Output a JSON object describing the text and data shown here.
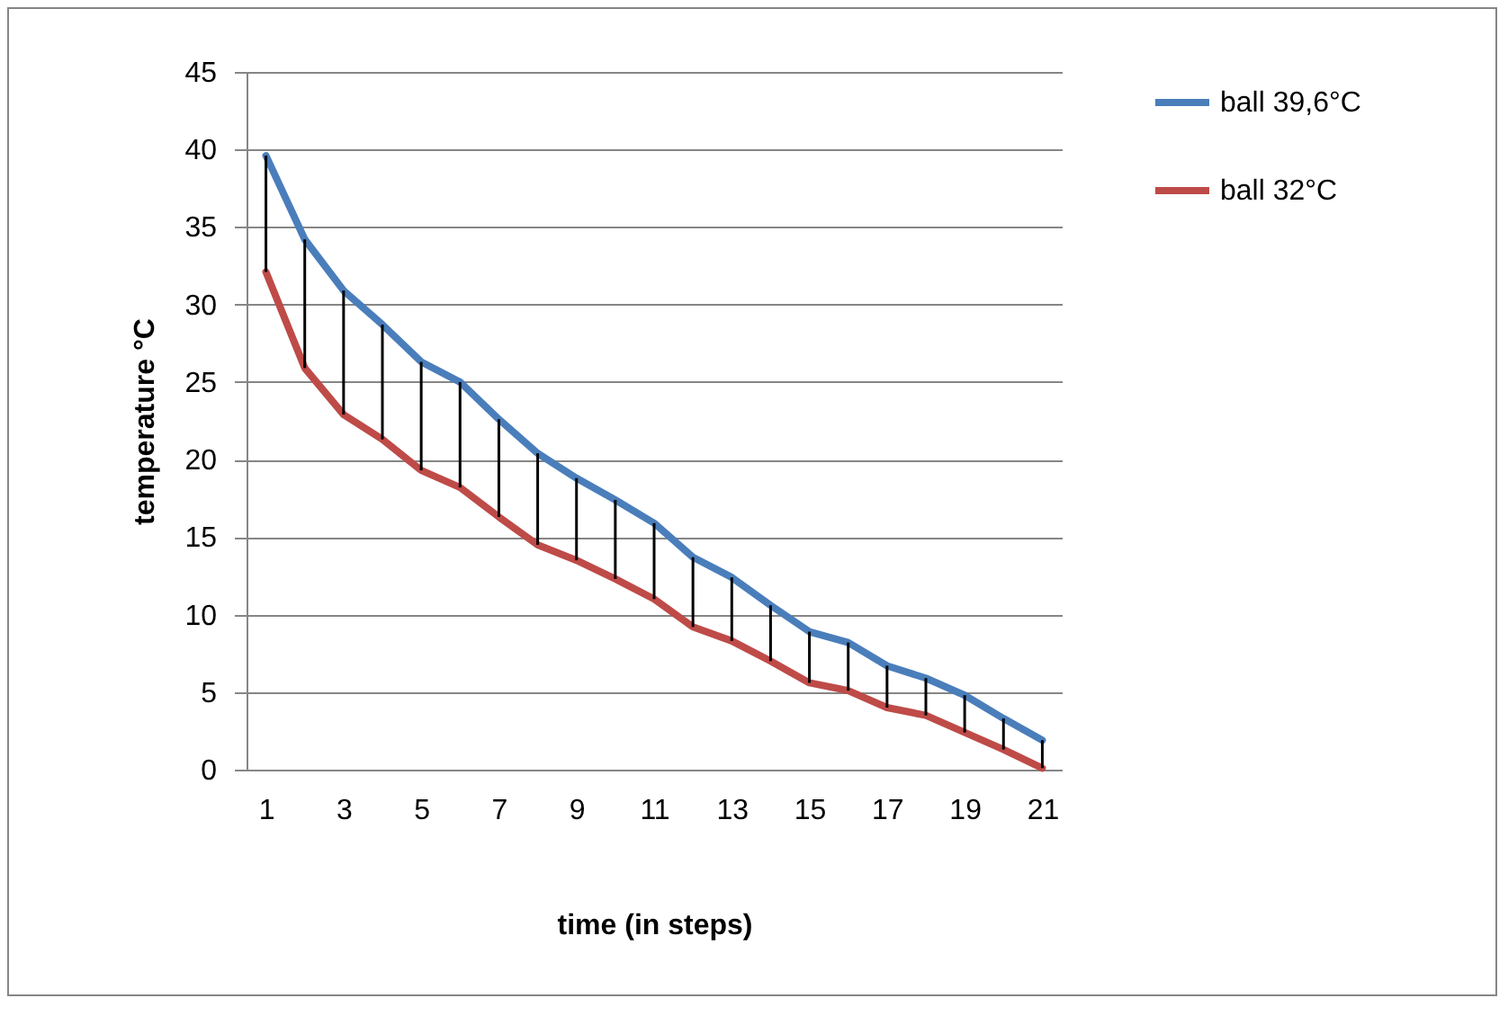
{
  "chart_data": {
    "type": "line",
    "xlabel": "time (in steps)",
    "ylabel": "temperature °C",
    "x": [
      1,
      2,
      3,
      4,
      5,
      6,
      7,
      8,
      9,
      10,
      11,
      12,
      13,
      14,
      15,
      16,
      17,
      18,
      19,
      20,
      21
    ],
    "series": [
      {
        "name": "ball 39,6°C",
        "color": "#4a7ebb",
        "values": [
          39.6,
          34.2,
          30.9,
          28.7,
          26.3,
          25.0,
          22.6,
          20.4,
          18.8,
          17.4,
          15.9,
          13.7,
          12.4,
          10.6,
          8.9,
          8.2,
          6.7,
          5.9,
          4.8,
          3.3,
          1.9
        ],
        "errors": [
          [
            32.1,
            39.6
          ],
          [
            25.9,
            34.2
          ],
          [
            22.9,
            30.9
          ],
          [
            21.3,
            28.7
          ],
          [
            19.3,
            26.3
          ],
          [
            18.2,
            25.0
          ],
          [
            16.3,
            22.6
          ],
          [
            14.5,
            20.4
          ],
          [
            13.5,
            18.8
          ],
          [
            12.3,
            17.4
          ],
          [
            11.0,
            15.9
          ],
          [
            9.2,
            13.7
          ],
          [
            8.3,
            12.4
          ],
          [
            7.0,
            10.6
          ],
          [
            5.6,
            8.9
          ],
          [
            5.1,
            8.2
          ],
          [
            4.0,
            6.7
          ],
          [
            3.5,
            5.9
          ],
          [
            2.4,
            4.8
          ],
          [
            1.3,
            3.3
          ],
          [
            0.1,
            1.9
          ]
        ]
      },
      {
        "name": "ball 32°C",
        "color": "#be4b48",
        "values": [
          32.1,
          25.9,
          22.9,
          21.3,
          19.3,
          18.2,
          16.3,
          14.5,
          13.5,
          12.3,
          11.0,
          9.2,
          8.3,
          7.0,
          5.6,
          5.1,
          4.0,
          3.5,
          2.4,
          1.3,
          0.1
        ]
      }
    ],
    "xlim": [
      0.5,
      21.5
    ],
    "xticks": [
      1,
      3,
      5,
      7,
      9,
      11,
      13,
      15,
      17,
      19,
      21
    ],
    "ylim": [
      0,
      45
    ],
    "yticks": [
      0,
      5,
      10,
      15,
      20,
      25,
      30,
      35,
      40,
      45
    ],
    "grid": "y",
    "legend": "right",
    "marker": "none",
    "line_style": "solid"
  }
}
